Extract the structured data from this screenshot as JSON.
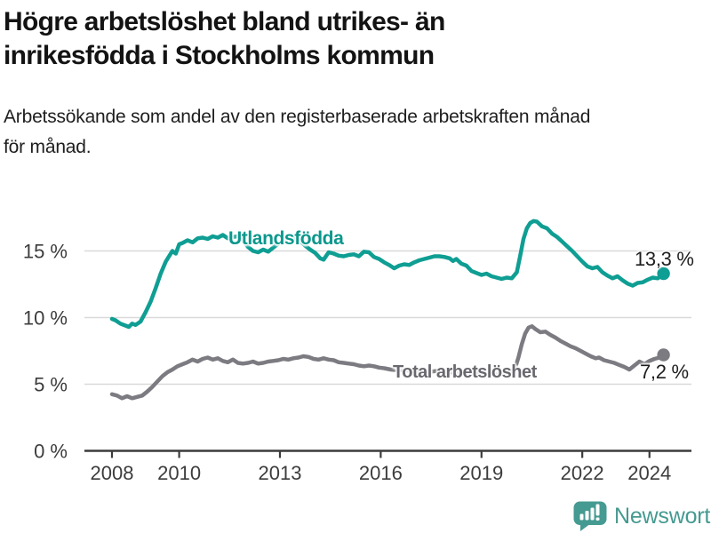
{
  "chart_data": {
    "type": "line",
    "title": "Högre arbetslöshet bland utrikes- än inrikesfödda i Stockholms kommun",
    "title_lines": [
      "Högre arbetslöshet bland utrikes- än",
      "inrikesfödda i Stockholms kommun"
    ],
    "subtitle": "Arbetssökande som andel av den registerbaserade arbetskraften månad för månad.",
    "subtitle_lines": [
      "Arbetssökande som andel av den registerbaserade arbetskraften månad",
      "för månad."
    ],
    "xlabel": "",
    "ylabel": "",
    "xlim": [
      2007.18,
      2025.25
    ],
    "ylim": [
      0,
      17.8
    ],
    "grid": "horizontal",
    "legend_position": "inline-labels",
    "x_ticks": [
      {
        "value": 2008,
        "label": "2008"
      },
      {
        "value": 2010,
        "label": "2010"
      },
      {
        "value": 2013,
        "label": "2013"
      },
      {
        "value": 2016,
        "label": "2016"
      },
      {
        "value": 2019,
        "label": "2019"
      },
      {
        "value": 2022,
        "label": "2022"
      },
      {
        "value": 2024,
        "label": "2024"
      }
    ],
    "y_ticks": [
      {
        "value": 0,
        "label": "0 %"
      },
      {
        "value": 5,
        "label": "5 %"
      },
      {
        "value": 10,
        "label": "10 %"
      },
      {
        "value": 15,
        "label": "15 %"
      }
    ],
    "series": [
      {
        "name": "Utlandsfödda",
        "color": "#0f9e93",
        "label_color": "#0b978c",
        "end_label": "13,3 %",
        "end_value": 13.3,
        "points": [
          [
            2008.0,
            9.9
          ],
          [
            2008.1,
            9.8
          ],
          [
            2008.25,
            9.55
          ],
          [
            2008.4,
            9.4
          ],
          [
            2008.5,
            9.3
          ],
          [
            2008.6,
            9.55
          ],
          [
            2008.7,
            9.45
          ],
          [
            2008.85,
            9.7
          ],
          [
            2009.0,
            10.4
          ],
          [
            2009.15,
            11.2
          ],
          [
            2009.3,
            12.2
          ],
          [
            2009.45,
            13.3
          ],
          [
            2009.6,
            14.2
          ],
          [
            2009.7,
            14.6
          ],
          [
            2009.8,
            15.0
          ],
          [
            2009.9,
            14.8
          ],
          [
            2010.0,
            15.5
          ],
          [
            2010.1,
            15.6
          ],
          [
            2010.25,
            15.8
          ],
          [
            2010.4,
            15.65
          ],
          [
            2010.55,
            15.95
          ],
          [
            2010.7,
            16.0
          ],
          [
            2010.85,
            15.9
          ],
          [
            2011.0,
            16.1
          ],
          [
            2011.15,
            16.0
          ],
          [
            2011.3,
            16.2
          ],
          [
            2011.45,
            15.95
          ],
          [
            2011.6,
            16.05
          ],
          [
            2011.75,
            16.1
          ],
          [
            2011.9,
            15.8
          ],
          [
            2012.05,
            15.3
          ],
          [
            2012.2,
            15.0
          ],
          [
            2012.35,
            14.9
          ],
          [
            2012.5,
            15.1
          ],
          [
            2012.65,
            14.95
          ],
          [
            2012.8,
            15.25
          ],
          [
            2013.0,
            15.65
          ],
          [
            2013.15,
            15.9
          ],
          [
            2013.3,
            16.0
          ],
          [
            2013.45,
            15.9
          ],
          [
            2013.6,
            15.75
          ],
          [
            2013.75,
            15.4
          ],
          [
            2013.9,
            15.1
          ],
          [
            2014.05,
            14.85
          ],
          [
            2014.2,
            14.45
          ],
          [
            2014.3,
            14.35
          ],
          [
            2014.45,
            14.9
          ],
          [
            2014.6,
            14.8
          ],
          [
            2014.75,
            14.65
          ],
          [
            2014.9,
            14.6
          ],
          [
            2015.05,
            14.7
          ],
          [
            2015.2,
            14.75
          ],
          [
            2015.35,
            14.6
          ],
          [
            2015.5,
            14.95
          ],
          [
            2015.65,
            14.9
          ],
          [
            2015.8,
            14.55
          ],
          [
            2015.95,
            14.4
          ],
          [
            2016.1,
            14.15
          ],
          [
            2016.25,
            13.95
          ],
          [
            2016.4,
            13.7
          ],
          [
            2016.55,
            13.9
          ],
          [
            2016.7,
            14.0
          ],
          [
            2016.85,
            13.95
          ],
          [
            2017.0,
            14.15
          ],
          [
            2017.15,
            14.3
          ],
          [
            2017.3,
            14.4
          ],
          [
            2017.45,
            14.5
          ],
          [
            2017.6,
            14.6
          ],
          [
            2017.75,
            14.6
          ],
          [
            2017.9,
            14.55
          ],
          [
            2018.05,
            14.45
          ],
          [
            2018.15,
            14.25
          ],
          [
            2018.25,
            14.4
          ],
          [
            2018.4,
            14.05
          ],
          [
            2018.55,
            13.9
          ],
          [
            2018.7,
            13.5
          ],
          [
            2018.85,
            13.35
          ],
          [
            2019.0,
            13.2
          ],
          [
            2019.15,
            13.3
          ],
          [
            2019.3,
            13.1
          ],
          [
            2019.45,
            13.0
          ],
          [
            2019.6,
            12.9
          ],
          [
            2019.75,
            13.0
          ],
          [
            2019.9,
            12.95
          ],
          [
            2020.05,
            13.4
          ],
          [
            2020.15,
            14.6
          ],
          [
            2020.25,
            15.9
          ],
          [
            2020.35,
            16.7
          ],
          [
            2020.45,
            17.1
          ],
          [
            2020.55,
            17.25
          ],
          [
            2020.65,
            17.2
          ],
          [
            2020.8,
            16.85
          ],
          [
            2020.95,
            16.7
          ],
          [
            2021.1,
            16.3
          ],
          [
            2021.25,
            16.05
          ],
          [
            2021.4,
            15.7
          ],
          [
            2021.55,
            15.35
          ],
          [
            2021.7,
            15.0
          ],
          [
            2021.85,
            14.6
          ],
          [
            2022.0,
            14.2
          ],
          [
            2022.15,
            13.85
          ],
          [
            2022.3,
            13.7
          ],
          [
            2022.45,
            13.8
          ],
          [
            2022.6,
            13.4
          ],
          [
            2022.75,
            13.15
          ],
          [
            2022.9,
            12.95
          ],
          [
            2023.05,
            13.1
          ],
          [
            2023.2,
            12.8
          ],
          [
            2023.35,
            12.55
          ],
          [
            2023.5,
            12.4
          ],
          [
            2023.65,
            12.6
          ],
          [
            2023.8,
            12.65
          ],
          [
            2023.95,
            12.85
          ],
          [
            2024.1,
            13.0
          ],
          [
            2024.25,
            12.95
          ],
          [
            2024.42,
            13.3
          ]
        ]
      },
      {
        "name": "Total arbetslöshet",
        "color": "#7b7b81",
        "label_color": "#68686e",
        "end_label": "7,2 %",
        "end_value": 7.2,
        "points": [
          [
            2008.0,
            4.25
          ],
          [
            2008.15,
            4.15
          ],
          [
            2008.3,
            3.95
          ],
          [
            2008.45,
            4.1
          ],
          [
            2008.6,
            3.95
          ],
          [
            2008.75,
            4.05
          ],
          [
            2008.9,
            4.15
          ],
          [
            2009.05,
            4.45
          ],
          [
            2009.2,
            4.8
          ],
          [
            2009.35,
            5.2
          ],
          [
            2009.5,
            5.6
          ],
          [
            2009.65,
            5.9
          ],
          [
            2009.8,
            6.1
          ],
          [
            2009.95,
            6.35
          ],
          [
            2010.1,
            6.5
          ],
          [
            2010.25,
            6.65
          ],
          [
            2010.4,
            6.85
          ],
          [
            2010.55,
            6.7
          ],
          [
            2010.7,
            6.9
          ],
          [
            2010.85,
            7.0
          ],
          [
            2011.0,
            6.85
          ],
          [
            2011.15,
            6.95
          ],
          [
            2011.3,
            6.75
          ],
          [
            2011.45,
            6.65
          ],
          [
            2011.6,
            6.85
          ],
          [
            2011.75,
            6.6
          ],
          [
            2011.9,
            6.55
          ],
          [
            2012.05,
            6.6
          ],
          [
            2012.2,
            6.7
          ],
          [
            2012.35,
            6.55
          ],
          [
            2012.5,
            6.6
          ],
          [
            2012.65,
            6.7
          ],
          [
            2012.8,
            6.75
          ],
          [
            2012.95,
            6.8
          ],
          [
            2013.1,
            6.9
          ],
          [
            2013.25,
            6.85
          ],
          [
            2013.4,
            6.95
          ],
          [
            2013.55,
            7.0
          ],
          [
            2013.7,
            7.1
          ],
          [
            2013.85,
            7.05
          ],
          [
            2014.0,
            6.9
          ],
          [
            2014.15,
            6.85
          ],
          [
            2014.3,
            6.95
          ],
          [
            2014.45,
            6.85
          ],
          [
            2014.6,
            6.8
          ],
          [
            2014.75,
            6.65
          ],
          [
            2014.9,
            6.6
          ],
          [
            2015.05,
            6.55
          ],
          [
            2015.2,
            6.5
          ],
          [
            2015.35,
            6.4
          ],
          [
            2015.5,
            6.35
          ],
          [
            2015.65,
            6.4
          ],
          [
            2015.8,
            6.35
          ],
          [
            2015.95,
            6.25
          ],
          [
            2016.1,
            6.2
          ],
          [
            2016.3,
            6.1
          ],
          [
            2016.5,
            6.05
          ],
          [
            2016.7,
            6.05
          ],
          [
            2016.9,
            6.0
          ],
          [
            2017.1,
            6.0
          ],
          [
            2017.3,
            5.95
          ],
          [
            2017.5,
            5.95
          ],
          [
            2017.7,
            6.0
          ],
          [
            2017.9,
            5.95
          ],
          [
            2018.1,
            5.9
          ],
          [
            2018.3,
            5.9
          ],
          [
            2018.5,
            5.85
          ],
          [
            2018.7,
            5.85
          ],
          [
            2018.9,
            5.8
          ],
          [
            2019.1,
            5.8
          ],
          [
            2019.3,
            5.75
          ],
          [
            2019.5,
            5.7
          ],
          [
            2019.7,
            5.8
          ],
          [
            2019.85,
            5.9
          ],
          [
            2020.0,
            6.2
          ],
          [
            2020.1,
            7.0
          ],
          [
            2020.2,
            8.0
          ],
          [
            2020.3,
            8.8
          ],
          [
            2020.4,
            9.25
          ],
          [
            2020.5,
            9.35
          ],
          [
            2020.6,
            9.15
          ],
          [
            2020.75,
            8.9
          ],
          [
            2020.9,
            8.95
          ],
          [
            2021.05,
            8.7
          ],
          [
            2021.2,
            8.5
          ],
          [
            2021.35,
            8.25
          ],
          [
            2021.5,
            8.05
          ],
          [
            2021.65,
            7.85
          ],
          [
            2021.8,
            7.7
          ],
          [
            2021.95,
            7.5
          ],
          [
            2022.1,
            7.3
          ],
          [
            2022.25,
            7.1
          ],
          [
            2022.4,
            6.95
          ],
          [
            2022.5,
            7.0
          ],
          [
            2022.65,
            6.8
          ],
          [
            2022.8,
            6.7
          ],
          [
            2022.95,
            6.6
          ],
          [
            2023.1,
            6.45
          ],
          [
            2023.25,
            6.3
          ],
          [
            2023.4,
            6.1
          ],
          [
            2023.55,
            6.4
          ],
          [
            2023.7,
            6.7
          ],
          [
            2023.85,
            6.5
          ],
          [
            2024.0,
            6.75
          ],
          [
            2024.15,
            6.9
          ],
          [
            2024.3,
            7.0
          ],
          [
            2024.42,
            7.2
          ]
        ]
      }
    ]
  },
  "colors": {
    "grid": "#d9d9d9",
    "axis": "#3b3b3b",
    "tick_label": "#3c3c3c",
    "value_label": "#1e1e1e",
    "brand": "#459a91"
  },
  "footer": {
    "brand": "Newsworthy"
  }
}
